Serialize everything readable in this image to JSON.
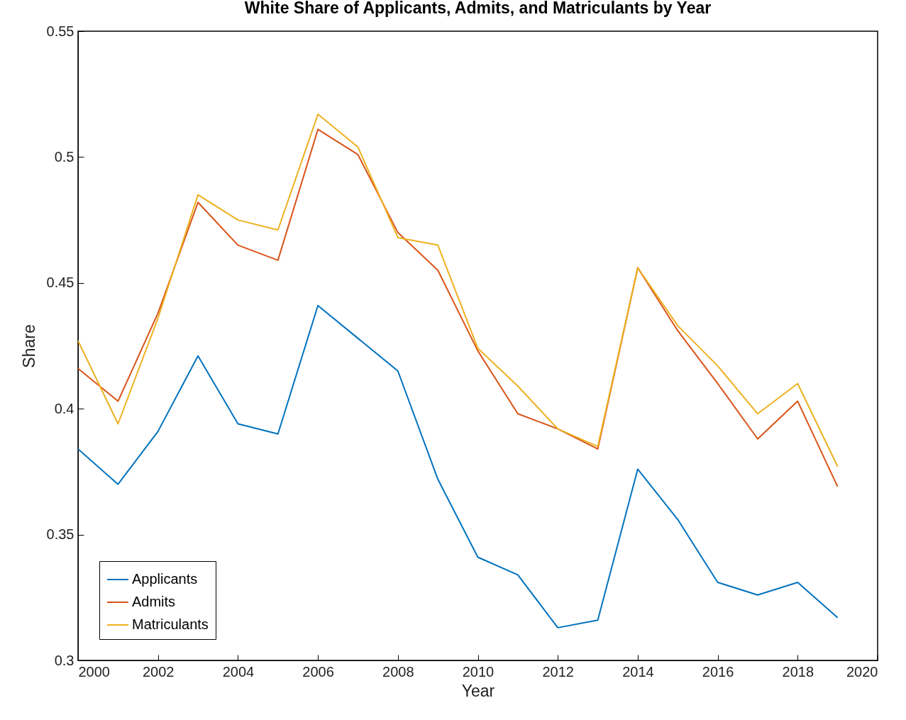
{
  "chart_data": {
    "type": "line",
    "title": "White Share of Applicants, Admits, and Matriculants by Year",
    "xlabel": "Year",
    "ylabel": "Share",
    "x": [
      2000,
      2001,
      2002,
      2003,
      2004,
      2005,
      2006,
      2007,
      2008,
      2009,
      2010,
      2011,
      2012,
      2013,
      2014,
      2015,
      2016,
      2017,
      2018,
      2019
    ],
    "series": [
      {
        "name": "Applicants",
        "color": "#0072bd",
        "values": [
          0.384,
          0.37,
          0.391,
          0.421,
          0.394,
          0.39,
          0.441,
          0.428,
          0.415,
          0.372,
          0.341,
          0.334,
          0.313,
          0.316,
          0.376,
          0.356,
          0.331,
          0.326,
          0.331,
          0.317
        ]
      },
      {
        "name": "Admits",
        "color": "#d95319",
        "values": [
          0.416,
          0.403,
          0.438,
          0.482,
          0.465,
          0.459,
          0.511,
          0.501,
          0.47,
          0.455,
          0.423,
          0.398,
          0.392,
          0.384,
          0.456,
          0.431,
          0.41,
          0.388,
          0.403,
          0.369
        ]
      },
      {
        "name": "Matriculants",
        "color": "#edb120",
        "values": [
          0.427,
          0.394,
          0.436,
          0.485,
          0.475,
          0.471,
          0.517,
          0.504,
          0.468,
          0.465,
          0.424,
          0.409,
          0.392,
          0.385,
          0.456,
          0.433,
          0.417,
          0.398,
          0.41,
          0.377
        ]
      }
    ],
    "xlim": [
      2000,
      2020
    ],
    "xticks": [
      2000,
      2002,
      2004,
      2006,
      2008,
      2010,
      2012,
      2014,
      2016,
      2018,
      2020
    ],
    "ylim": [
      0.3,
      0.55
    ],
    "yticks": [
      0.3,
      0.35,
      0.4,
      0.45,
      0.5,
      0.55
    ],
    "grid": false,
    "legend": "bottom left",
    "marker": "none",
    "line_style": "solid"
  }
}
